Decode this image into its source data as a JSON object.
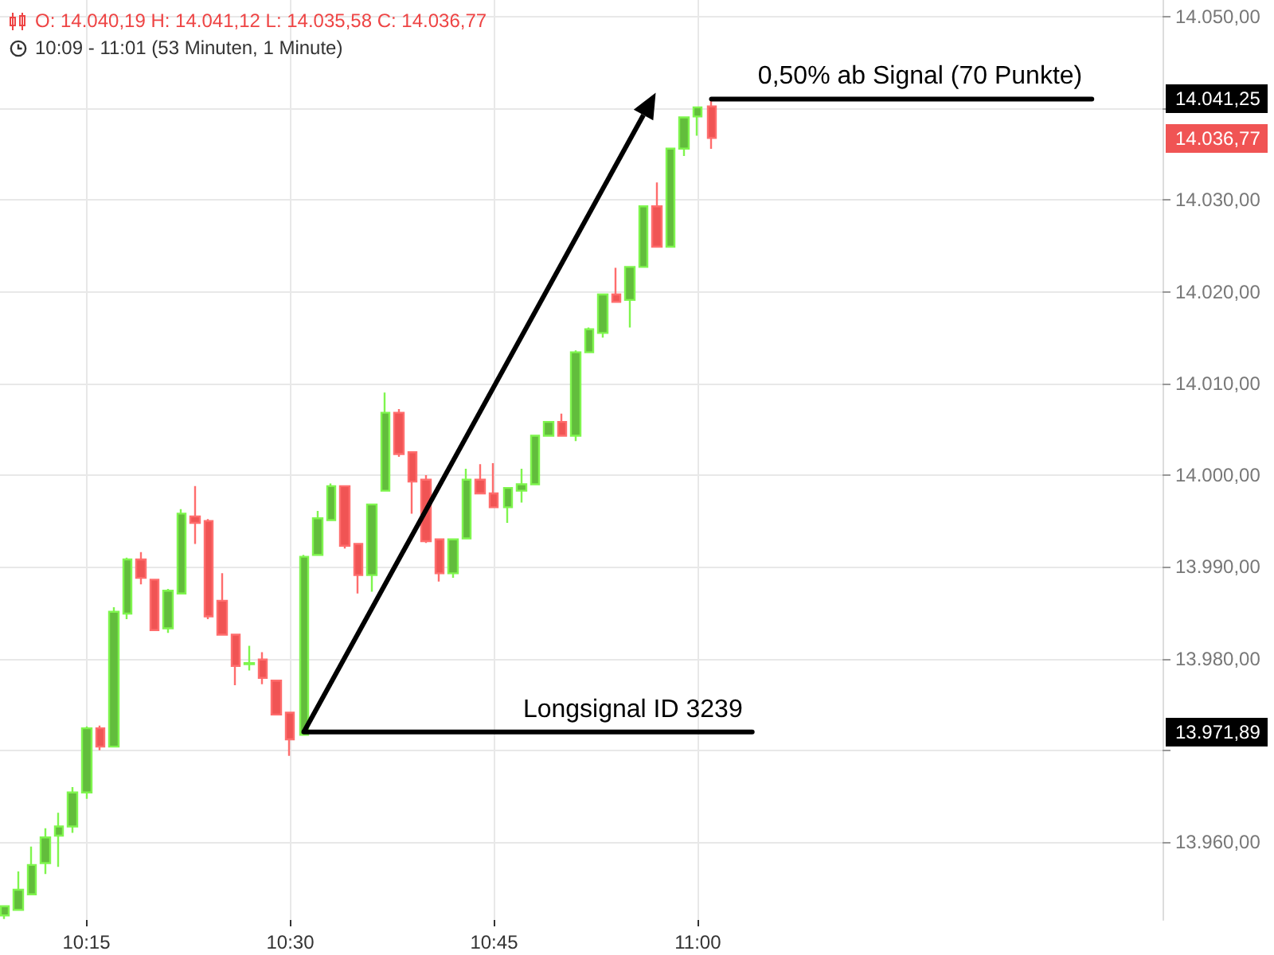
{
  "chart_data": {
    "type": "candlestick",
    "title": "O: 14.040,19  H: 14.041,12  L: 14.035,58  C: 14.036,77",
    "subtitle": "10:09 - 11:01  (53 Minuten, 1 Minute)",
    "x": [
      10.15,
      10.1667,
      10.1833,
      10.2,
      10.2167,
      10.2333,
      10.25,
      10.2667,
      10.2833,
      10.3,
      10.3167,
      10.3333,
      10.35,
      10.3667,
      10.3833,
      10.4,
      10.4167,
      10.4333,
      10.45,
      10.4667,
      10.4833,
      10.5,
      10.5167,
      10.5333,
      10.55,
      10.5667,
      10.5833,
      10.6,
      10.6167,
      10.6333,
      10.65,
      10.6667,
      10.6833,
      10.7,
      10.7167,
      10.7333,
      10.75,
      10.7667,
      10.7833,
      10.8,
      10.8167,
      10.8333,
      10.85,
      10.8667,
      10.8833,
      10.9,
      10.9167,
      10.9333,
      10.95,
      10.9667,
      10.9833,
      11.0,
      11.0167
    ],
    "ohlc": [
      [
        13952,
        13953,
        13951.6,
        13953
      ],
      [
        13952.6,
        13956.8,
        13952.6,
        13954.8
      ],
      [
        13954.3,
        13959.5,
        13954.3,
        13957.5
      ],
      [
        13957.7,
        13961.5,
        13956.5,
        13960.5
      ],
      [
        13960.7,
        13963.2,
        13957.3,
        13961.7
      ],
      [
        13961.7,
        13966,
        13961,
        13965.4
      ],
      [
        13965.4,
        13972.6,
        13964.7,
        13972.4
      ],
      [
        13972.4,
        13972.7,
        13970,
        13970.4
      ],
      [
        13970.4,
        13985.6,
        13970.4,
        13985.1
      ],
      [
        13984.9,
        13991,
        13984.3,
        13990.8
      ],
      [
        13990.8,
        13991.6,
        13988.1,
        13988.8
      ],
      [
        13988.6,
        13988.6,
        13983,
        13983.1
      ],
      [
        13983.3,
        13987.6,
        13982.8,
        13987.4
      ],
      [
        13987.1,
        13996.3,
        13987,
        13995.8
      ],
      [
        13995.5,
        13998.8,
        13992.5,
        13994.8
      ],
      [
        13995,
        13995.2,
        13984.3,
        13984.6
      ],
      [
        13986.3,
        13989.3,
        13982.6,
        13982.6
      ],
      [
        13982.6,
        13982.6,
        13977.1,
        13979.2
      ],
      [
        13979.4,
        13981.4,
        13978.7,
        13979.5
      ],
      [
        13979.9,
        13980.7,
        13977.2,
        13977.9
      ],
      [
        13977.6,
        13977.6,
        13973.9,
        13973.9
      ],
      [
        13974.1,
        13974.1,
        13969.4,
        13971.2
      ],
      [
        13971.7,
        13991.3,
        13971.7,
        13991.1
      ],
      [
        13991.3,
        13996.1,
        13991.3,
        13995.3
      ],
      [
        13995.1,
        13999.1,
        13995,
        13998.8
      ],
      [
        13998.8,
        13998.8,
        13992,
        13992.3
      ],
      [
        13992.5,
        13992.5,
        13987.1,
        13989.1
      ],
      [
        13989.1,
        13996.8,
        13987.3,
        13996.8
      ],
      [
        13998.3,
        14009,
        13998.3,
        14006.8
      ],
      [
        14006.8,
        14007.2,
        14002,
        14002.3
      ],
      [
        14002.5,
        14002.5,
        13995.8,
        13999.3
      ],
      [
        13999.5,
        14000,
        13992.6,
        13992.8
      ],
      [
        13993,
        13993,
        13988.4,
        13989.3
      ],
      [
        13989.3,
        13993,
        13988.8,
        13993
      ],
      [
        13993.1,
        14000.7,
        13993.1,
        13999.5
      ],
      [
        13999.5,
        14001.2,
        13998,
        13998
      ],
      [
        13998,
        14001.3,
        13996.5,
        13996.5
      ],
      [
        13996.5,
        13998.6,
        13994.8,
        13998.6
      ],
      [
        13998.3,
        14000.7,
        13997,
        13999
      ],
      [
        13999,
        14004.3,
        13999,
        14004.3
      ],
      [
        14004.3,
        14005.8,
        14004.3,
        14005.8
      ],
      [
        14005.8,
        14006.7,
        14004.3,
        14004.3
      ],
      [
        14004.3,
        14013.6,
        14003.7,
        14013.4
      ],
      [
        14013.4,
        14016.1,
        14013.4,
        14015.9
      ],
      [
        14015.5,
        14019.7,
        14015,
        14019.7
      ],
      [
        14019.7,
        14022.6,
        14018.9,
        14018.9
      ],
      [
        14019.1,
        14022.7,
        14016.1,
        14022.7
      ],
      [
        14022.7,
        14029.3,
        14022.7,
        14029.3
      ],
      [
        14029.3,
        14031.9,
        14024.9,
        14024.9
      ],
      [
        14024.9,
        14035.6,
        14024.9,
        14035.6
      ],
      [
        14035.6,
        14039,
        14034.8,
        14039
      ],
      [
        14039.1,
        14040.1,
        14037,
        14040.1
      ],
      [
        14040.19,
        14041.12,
        14035.58,
        14036.77
      ]
    ],
    "colors": [
      "#62bd3c",
      "#62bd3c",
      "#62bd3c",
      "#62bd3c",
      "#62bd3c",
      "#62bd3c",
      "#62bd3c",
      "#f05454",
      "#62bd3c",
      "#62bd3c",
      "#f05454",
      "#f05454",
      "#62bd3c",
      "#62bd3c",
      "#f05454",
      "#f05454",
      "#f05454",
      "#f05454",
      "#62bd3c",
      "#f05454",
      "#f05454",
      "#f05454",
      "#62bd3c",
      "#62bd3c",
      "#62bd3c",
      "#f05454",
      "#f05454",
      "#62bd3c",
      "#62bd3c",
      "#f05454",
      "#f05454",
      "#f05454",
      "#f05454",
      "#62bd3c",
      "#62bd3c",
      "#f05454",
      "#f05454",
      "#62bd3c",
      "#62bd3c",
      "#62bd3c",
      "#62bd3c",
      "#f05454",
      "#62bd3c",
      "#62bd3c",
      "#62bd3c",
      "#f05454",
      "#62bd3c",
      "#62bd3c",
      "#f05454",
      "#62bd3c",
      "#62bd3c",
      "#62bd3c",
      "#f05454"
    ],
    "series": [
      {
        "type": "line",
        "name": "Longsignal ID 3239",
        "color": "#000000",
        "x": [
          10.5167,
          11.0667
        ],
        "values": [
          13972,
          13972
        ]
      },
      {
        "type": "line",
        "name": "0,50% ab Signal (70 Punkte)",
        "color": "#000000",
        "x": [
          11.0167,
          11.4833
        ],
        "values": [
          14041,
          14041
        ]
      }
    ],
    "annotations": [
      "14.036,77",
      "14.041,25",
      "13.971,89"
    ],
    "xlim": [
      10.144,
      11.57
    ],
    "xticks": [
      {
        "value": 10.25,
        "label": "10:15"
      },
      {
        "value": 10.5,
        "label": "10:30"
      },
      {
        "value": 10.75,
        "label": "10:45"
      },
      {
        "value": 11.0,
        "label": "11:00"
      }
    ],
    "ylim": [
      13951.5,
      14051.8
    ],
    "yticks": [
      {
        "value": 13960,
        "label": "13.960,00"
      },
      {
        "value": 13970,
        "label": null
      },
      {
        "value": 13980,
        "label": "13.980,00"
      },
      {
        "value": 13990,
        "label": "13.990,00"
      },
      {
        "value": 14000,
        "label": "14.000,00"
      },
      {
        "value": 14010,
        "label": "14.010,00"
      },
      {
        "value": 14020,
        "label": "14.020,00"
      },
      {
        "value": 14030,
        "label": "14.030,00"
      },
      {
        "value": 14040,
        "label": null
      },
      {
        "value": 14050,
        "label": "14.050,00"
      }
    ],
    "grid": true,
    "legend": false,
    "marker": "none",
    "line_style": "solid"
  }
}
